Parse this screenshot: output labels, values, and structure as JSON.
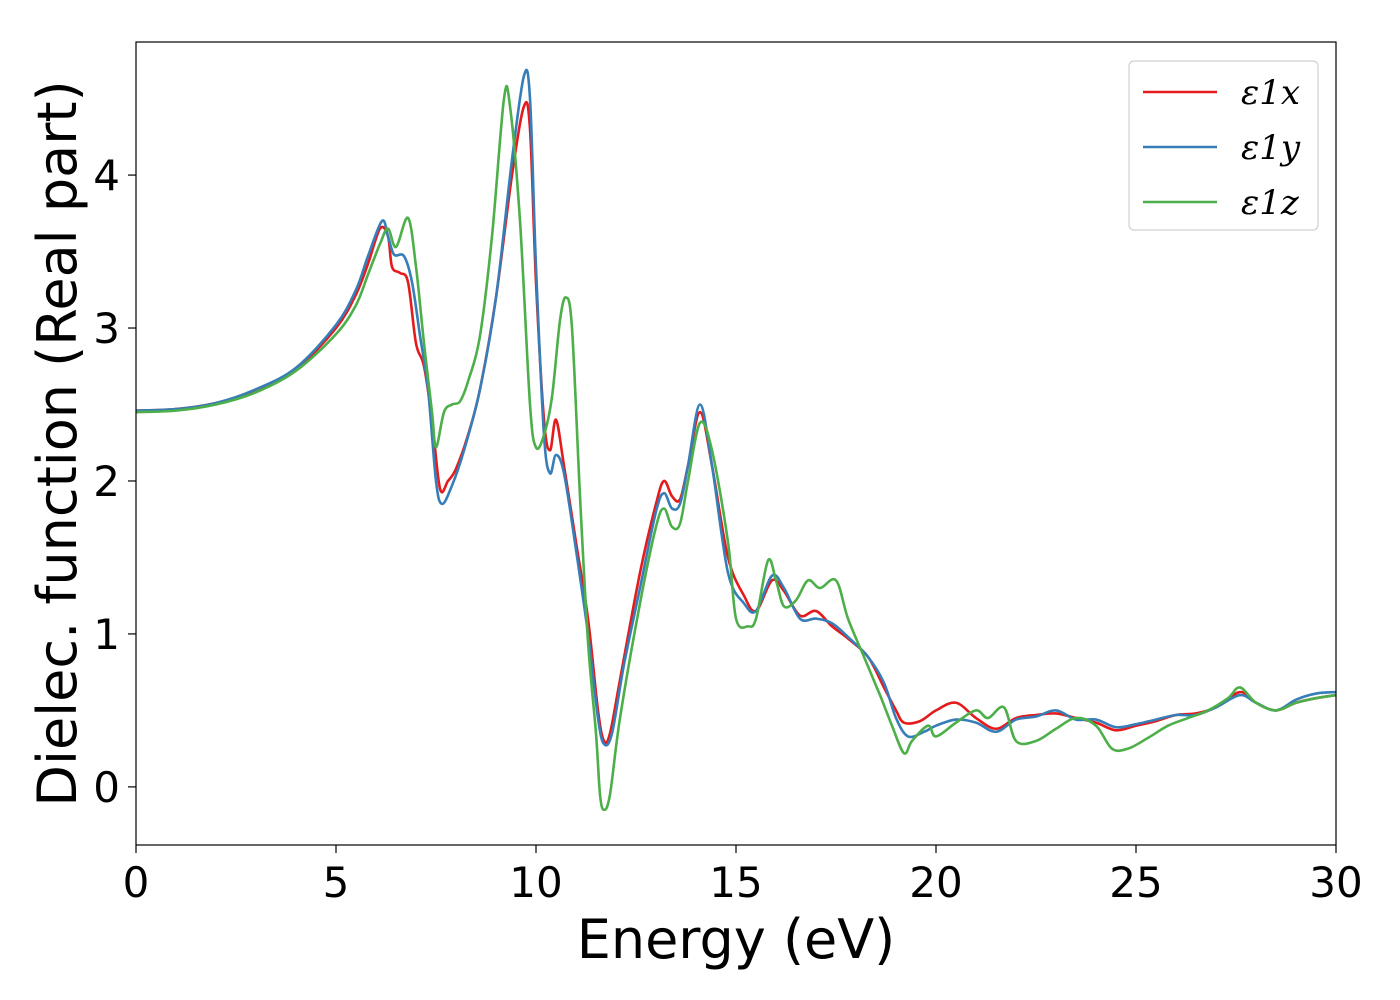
{
  "chart_data": {
    "type": "line",
    "title": "",
    "xlabel": "Energy (eV)",
    "ylabel": "Dielec. function (Real part)",
    "xlim": [
      0,
      30
    ],
    "ylim": [
      -0.38,
      4.87
    ],
    "xticks": [
      "0",
      "5",
      "10",
      "15",
      "20",
      "25",
      "30"
    ],
    "yticks": [
      "0",
      "1",
      "2",
      "3",
      "4"
    ],
    "grid": false,
    "legend_position": "top-right",
    "series": [
      {
        "name": "ε1x",
        "color": "#e41a1c",
        "points": [
          [
            0,
            2.46
          ],
          [
            1,
            2.47
          ],
          [
            2,
            2.51
          ],
          [
            3,
            2.59
          ],
          [
            4,
            2.73
          ],
          [
            5,
            3.0
          ],
          [
            5.5,
            3.22
          ],
          [
            5.8,
            3.42
          ],
          [
            6.1,
            3.65
          ],
          [
            6.3,
            3.6
          ],
          [
            6.4,
            3.4
          ],
          [
            6.6,
            3.36
          ],
          [
            6.8,
            3.3
          ],
          [
            7.0,
            2.9
          ],
          [
            7.2,
            2.75
          ],
          [
            7.4,
            2.4
          ],
          [
            7.6,
            1.95
          ],
          [
            7.8,
            2.0
          ],
          [
            8.0,
            2.08
          ],
          [
            8.3,
            2.3
          ],
          [
            8.6,
            2.6
          ],
          [
            9.0,
            3.2
          ],
          [
            9.4,
            4.0
          ],
          [
            9.7,
            4.45
          ],
          [
            9.85,
            4.3
          ],
          [
            10.0,
            3.3
          ],
          [
            10.2,
            2.4
          ],
          [
            10.35,
            2.2
          ],
          [
            10.5,
            2.4
          ],
          [
            10.7,
            2.1
          ],
          [
            11.0,
            1.6
          ],
          [
            11.3,
            1.1
          ],
          [
            11.55,
            0.5
          ],
          [
            11.7,
            0.3
          ],
          [
            11.85,
            0.35
          ],
          [
            12.1,
            0.7
          ],
          [
            12.6,
            1.4
          ],
          [
            13.0,
            1.85
          ],
          [
            13.2,
            2.0
          ],
          [
            13.4,
            1.9
          ],
          [
            13.6,
            1.88
          ],
          [
            13.8,
            2.1
          ],
          [
            14.1,
            2.45
          ],
          [
            14.4,
            2.1
          ],
          [
            14.8,
            1.5
          ],
          [
            15.2,
            1.25
          ],
          [
            15.5,
            1.15
          ],
          [
            15.9,
            1.35
          ],
          [
            16.2,
            1.28
          ],
          [
            16.6,
            1.12
          ],
          [
            17.0,
            1.15
          ],
          [
            17.4,
            1.05
          ],
          [
            17.8,
            0.97
          ],
          [
            18.3,
            0.85
          ],
          [
            18.7,
            0.65
          ],
          [
            19.0,
            0.5
          ],
          [
            19.2,
            0.42
          ],
          [
            19.6,
            0.43
          ],
          [
            20.0,
            0.5
          ],
          [
            20.5,
            0.55
          ],
          [
            21.0,
            0.45
          ],
          [
            21.5,
            0.38
          ],
          [
            22.0,
            0.45
          ],
          [
            22.5,
            0.47
          ],
          [
            23.0,
            0.48
          ],
          [
            23.5,
            0.45
          ],
          [
            24.0,
            0.42
          ],
          [
            24.5,
            0.37
          ],
          [
            25.0,
            0.4
          ],
          [
            25.5,
            0.43
          ],
          [
            26.0,
            0.47
          ],
          [
            26.5,
            0.48
          ],
          [
            27.0,
            0.52
          ],
          [
            27.6,
            0.62
          ],
          [
            28.0,
            0.55
          ],
          [
            28.5,
            0.5
          ],
          [
            29.0,
            0.55
          ],
          [
            29.5,
            0.58
          ],
          [
            30.0,
            0.6
          ]
        ]
      },
      {
        "name": "ε1y",
        "color": "#377eb8",
        "points": [
          [
            0,
            2.46
          ],
          [
            1,
            2.47
          ],
          [
            2,
            2.51
          ],
          [
            3,
            2.6
          ],
          [
            4,
            2.74
          ],
          [
            5,
            3.02
          ],
          [
            5.5,
            3.25
          ],
          [
            5.8,
            3.47
          ],
          [
            6.15,
            3.7
          ],
          [
            6.3,
            3.6
          ],
          [
            6.45,
            3.48
          ],
          [
            6.7,
            3.47
          ],
          [
            6.9,
            3.3
          ],
          [
            7.1,
            2.95
          ],
          [
            7.3,
            2.6
          ],
          [
            7.5,
            2.0
          ],
          [
            7.65,
            1.85
          ],
          [
            7.9,
            1.97
          ],
          [
            8.2,
            2.2
          ],
          [
            8.6,
            2.6
          ],
          [
            9.0,
            3.2
          ],
          [
            9.4,
            4.1
          ],
          [
            9.7,
            4.65
          ],
          [
            9.85,
            4.5
          ],
          [
            10.0,
            3.4
          ],
          [
            10.2,
            2.3
          ],
          [
            10.35,
            2.05
          ],
          [
            10.5,
            2.17
          ],
          [
            10.7,
            2.05
          ],
          [
            11.0,
            1.55
          ],
          [
            11.3,
            1.0
          ],
          [
            11.55,
            0.45
          ],
          [
            11.7,
            0.28
          ],
          [
            11.9,
            0.35
          ],
          [
            12.2,
            0.8
          ],
          [
            12.6,
            1.3
          ],
          [
            13.0,
            1.8
          ],
          [
            13.2,
            1.92
          ],
          [
            13.4,
            1.82
          ],
          [
            13.6,
            1.85
          ],
          [
            13.8,
            2.1
          ],
          [
            14.1,
            2.5
          ],
          [
            14.4,
            2.1
          ],
          [
            14.8,
            1.4
          ],
          [
            15.2,
            1.2
          ],
          [
            15.5,
            1.15
          ],
          [
            15.9,
            1.38
          ],
          [
            16.2,
            1.3
          ],
          [
            16.6,
            1.1
          ],
          [
            17.0,
            1.1
          ],
          [
            17.4,
            1.07
          ],
          [
            17.8,
            0.98
          ],
          [
            18.3,
            0.85
          ],
          [
            18.7,
            0.68
          ],
          [
            19.0,
            0.45
          ],
          [
            19.3,
            0.33
          ],
          [
            19.7,
            0.36
          ],
          [
            20.0,
            0.4
          ],
          [
            20.5,
            0.44
          ],
          [
            21.0,
            0.42
          ],
          [
            21.5,
            0.36
          ],
          [
            22.0,
            0.44
          ],
          [
            22.5,
            0.46
          ],
          [
            23.0,
            0.5
          ],
          [
            23.5,
            0.44
          ],
          [
            24.0,
            0.44
          ],
          [
            24.5,
            0.39
          ],
          [
            25.0,
            0.41
          ],
          [
            25.5,
            0.44
          ],
          [
            26.0,
            0.47
          ],
          [
            26.5,
            0.47
          ],
          [
            27.0,
            0.52
          ],
          [
            27.6,
            0.6
          ],
          [
            28.0,
            0.55
          ],
          [
            28.5,
            0.5
          ],
          [
            29.0,
            0.57
          ],
          [
            29.5,
            0.61
          ],
          [
            30.0,
            0.62
          ]
        ]
      },
      {
        "name": "ε1z",
        "color": "#4daf4a",
        "points": [
          [
            0,
            2.45
          ],
          [
            1,
            2.46
          ],
          [
            2,
            2.5
          ],
          [
            3,
            2.58
          ],
          [
            4,
            2.72
          ],
          [
            5,
            2.96
          ],
          [
            5.5,
            3.15
          ],
          [
            5.8,
            3.35
          ],
          [
            6.1,
            3.55
          ],
          [
            6.3,
            3.65
          ],
          [
            6.5,
            3.53
          ],
          [
            6.8,
            3.72
          ],
          [
            7.0,
            3.4
          ],
          [
            7.2,
            2.9
          ],
          [
            7.4,
            2.45
          ],
          [
            7.5,
            2.22
          ],
          [
            7.7,
            2.45
          ],
          [
            7.9,
            2.5
          ],
          [
            8.1,
            2.52
          ],
          [
            8.3,
            2.65
          ],
          [
            8.6,
            2.95
          ],
          [
            8.9,
            3.6
          ],
          [
            9.2,
            4.5
          ],
          [
            9.35,
            4.45
          ],
          [
            9.6,
            3.7
          ],
          [
            9.85,
            2.5
          ],
          [
            10.0,
            2.22
          ],
          [
            10.2,
            2.3
          ],
          [
            10.4,
            2.55
          ],
          [
            10.6,
            3.05
          ],
          [
            10.75,
            3.2
          ],
          [
            10.9,
            3.0
          ],
          [
            11.1,
            1.9
          ],
          [
            11.3,
            0.95
          ],
          [
            11.5,
            0.35
          ],
          [
            11.6,
            -0.05
          ],
          [
            11.7,
            -0.15
          ],
          [
            11.85,
            -0.05
          ],
          [
            12.1,
            0.45
          ],
          [
            12.6,
            1.2
          ],
          [
            13.0,
            1.7
          ],
          [
            13.2,
            1.82
          ],
          [
            13.4,
            1.7
          ],
          [
            13.6,
            1.72
          ],
          [
            13.8,
            2.0
          ],
          [
            14.1,
            2.38
          ],
          [
            14.4,
            2.2
          ],
          [
            14.8,
            1.6
          ],
          [
            15.0,
            1.1
          ],
          [
            15.3,
            1.05
          ],
          [
            15.5,
            1.1
          ],
          [
            15.8,
            1.48
          ],
          [
            16.0,
            1.35
          ],
          [
            16.2,
            1.18
          ],
          [
            16.5,
            1.22
          ],
          [
            16.8,
            1.35
          ],
          [
            17.1,
            1.3
          ],
          [
            17.5,
            1.35
          ],
          [
            17.8,
            1.1
          ],
          [
            18.2,
            0.85
          ],
          [
            18.6,
            0.6
          ],
          [
            18.9,
            0.4
          ],
          [
            19.2,
            0.22
          ],
          [
            19.4,
            0.3
          ],
          [
            19.8,
            0.4
          ],
          [
            20.0,
            0.33
          ],
          [
            20.5,
            0.42
          ],
          [
            21.0,
            0.5
          ],
          [
            21.3,
            0.45
          ],
          [
            21.7,
            0.52
          ],
          [
            22.0,
            0.3
          ],
          [
            22.5,
            0.3
          ],
          [
            23.0,
            0.38
          ],
          [
            23.5,
            0.45
          ],
          [
            24.0,
            0.4
          ],
          [
            24.4,
            0.25
          ],
          [
            24.8,
            0.25
          ],
          [
            25.3,
            0.32
          ],
          [
            25.8,
            0.4
          ],
          [
            26.3,
            0.45
          ],
          [
            26.8,
            0.5
          ],
          [
            27.3,
            0.58
          ],
          [
            27.6,
            0.65
          ],
          [
            28.0,
            0.55
          ],
          [
            28.5,
            0.5
          ],
          [
            29.0,
            0.55
          ],
          [
            29.5,
            0.58
          ],
          [
            30.0,
            0.6
          ]
        ]
      }
    ]
  }
}
